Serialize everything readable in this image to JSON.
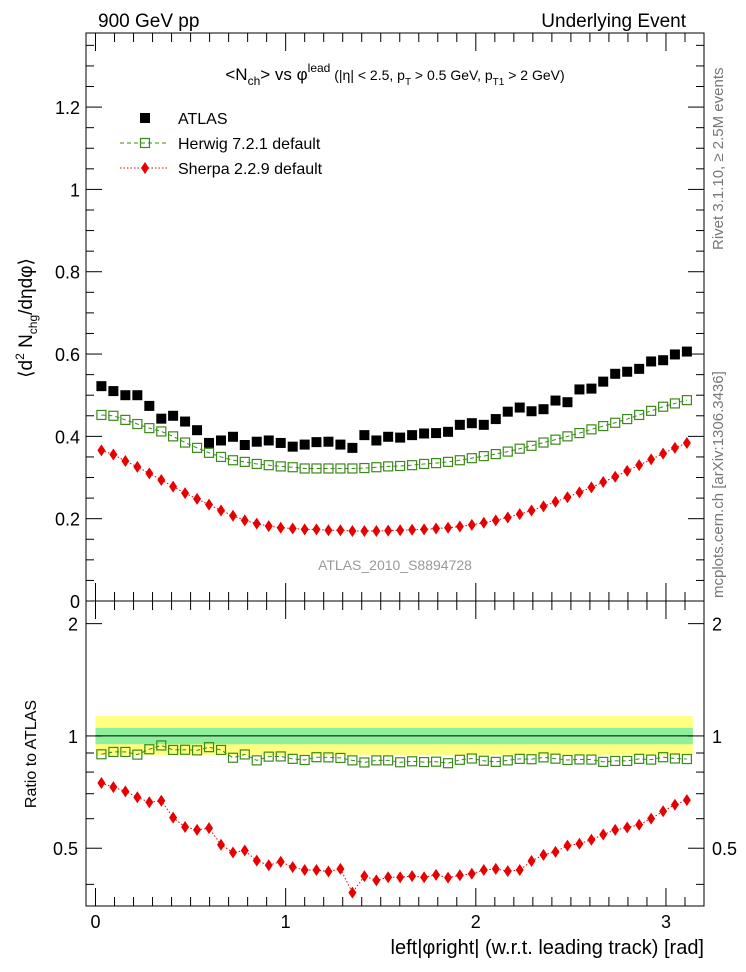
{
  "header": {
    "left": "900 GeV pp",
    "right": "Underlying Event"
  },
  "side_labels": {
    "top": "Rivet 3.1.10, ≥ 2.5M events",
    "bottom": "mcplots.cern.ch [arXiv:1306.3436]"
  },
  "analysis_id": "ATLAS_2010_S8894728",
  "chart_data": [
    {
      "type": "scatter",
      "title": "<N_ch> vs φ^lead (|η| < 2.5, p_T > 0.5 GeV, p_T1 > 2 GeV)",
      "ylabel": "⟨d² N_chg/dηdφ⟩",
      "xlim": [
        -0.05,
        3.2
      ],
      "ylim": [
        0,
        1.38
      ],
      "yticks": [
        0,
        0.2,
        0.4,
        0.6,
        0.8,
        1,
        1.2
      ],
      "ytick_labels": [
        "0",
        "0.2",
        "0.4",
        "0.6",
        "0.8",
        "1",
        "1.2"
      ],
      "legend_position": "top-left",
      "x": [
        0.031,
        0.094,
        0.157,
        0.22,
        0.283,
        0.346,
        0.408,
        0.471,
        0.534,
        0.597,
        0.66,
        0.723,
        0.785,
        0.848,
        0.911,
        0.974,
        1.037,
        1.1,
        1.162,
        1.225,
        1.288,
        1.351,
        1.414,
        1.477,
        1.539,
        1.602,
        1.665,
        1.728,
        1.791,
        1.854,
        1.916,
        1.979,
        2.042,
        2.105,
        2.168,
        2.231,
        2.293,
        2.356,
        2.419,
        2.482,
        2.545,
        2.608,
        2.67,
        2.733,
        2.796,
        2.859,
        2.922,
        2.985,
        3.047,
        3.11
      ],
      "series": [
        {
          "name": "ATLAS",
          "color": "#000000",
          "marker": "square-filled",
          "values": [
            0.522,
            0.51,
            0.5,
            0.5,
            0.474,
            0.443,
            0.45,
            0.436,
            0.415,
            0.384,
            0.39,
            0.399,
            0.379,
            0.387,
            0.39,
            0.384,
            0.375,
            0.38,
            0.386,
            0.387,
            0.38,
            0.372,
            0.403,
            0.39,
            0.399,
            0.397,
            0.403,
            0.407,
            0.408,
            0.411,
            0.428,
            0.432,
            0.428,
            0.442,
            0.46,
            0.47,
            0.461,
            0.466,
            0.487,
            0.483,
            0.514,
            0.516,
            0.533,
            0.552,
            0.557,
            0.564,
            0.582,
            0.585,
            0.599,
            0.606
          ]
        },
        {
          "name": "Herwig 7.2.1 default",
          "color": "#3a8a1a",
          "marker": "square-open",
          "line": "dashed",
          "values": [
            0.452,
            0.45,
            0.44,
            0.43,
            0.42,
            0.412,
            0.4,
            0.385,
            0.372,
            0.36,
            0.35,
            0.342,
            0.338,
            0.333,
            0.33,
            0.327,
            0.325,
            0.322,
            0.322,
            0.322,
            0.322,
            0.322,
            0.323,
            0.325,
            0.327,
            0.328,
            0.33,
            0.333,
            0.335,
            0.338,
            0.342,
            0.347,
            0.352,
            0.357,
            0.363,
            0.37,
            0.377,
            0.385,
            0.392,
            0.4,
            0.408,
            0.417,
            0.425,
            0.433,
            0.442,
            0.452,
            0.462,
            0.472,
            0.48,
            0.488
          ]
        },
        {
          "name": "Sherpa 2.2.9 default",
          "color": "#e80000",
          "marker": "diamond-filled",
          "line": "dotted",
          "values": [
            0.366,
            0.356,
            0.34,
            0.326,
            0.31,
            0.294,
            0.278,
            0.262,
            0.248,
            0.234,
            0.22,
            0.207,
            0.196,
            0.188,
            0.182,
            0.178,
            0.176,
            0.174,
            0.174,
            0.172,
            0.172,
            0.17,
            0.17,
            0.17,
            0.171,
            0.172,
            0.173,
            0.174,
            0.176,
            0.178,
            0.181,
            0.185,
            0.19,
            0.196,
            0.203,
            0.211,
            0.22,
            0.23,
            0.241,
            0.252,
            0.264,
            0.276,
            0.289,
            0.302,
            0.316,
            0.33,
            0.344,
            0.358,
            0.372,
            0.384
          ]
        }
      ]
    },
    {
      "type": "scatter",
      "ylabel": "Ratio to ATLAS",
      "xlabel": "left|φright| (w.r.t. leading track) [rad]",
      "xlim": [
        -0.05,
        3.2
      ],
      "ylim": [
        0.35,
        2.3
      ],
      "log_y": true,
      "xticks": [
        0,
        1,
        2,
        3
      ],
      "xtick_labels": [
        "0",
        "1",
        "2",
        "3"
      ],
      "yticks": [
        0.5,
        1,
        2
      ],
      "ytick_labels": [
        "0.5",
        "1",
        "2"
      ],
      "bands": {
        "inner": {
          "color": "#8ef09a",
          "low": 0.95,
          "high": 1.05
        },
        "outer": {
          "color": "#ffff80",
          "low": 0.89,
          "high": 1.13
        }
      },
      "series": [
        {
          "name": "Herwig 7.2.1 default",
          "color": "#3a8a1a",
          "values": [
            0.893,
            0.906,
            0.906,
            0.891,
            0.921,
            0.943,
            0.917,
            0.918,
            0.915,
            0.933,
            0.917,
            0.874,
            0.892,
            0.86,
            0.88,
            0.881,
            0.868,
            0.862,
            0.877,
            0.876,
            0.873,
            0.86,
            0.849,
            0.86,
            0.86,
            0.85,
            0.855,
            0.851,
            0.853,
            0.845,
            0.863,
            0.87,
            0.858,
            0.852,
            0.86,
            0.868,
            0.866,
            0.876,
            0.869,
            0.862,
            0.865,
            0.864,
            0.852,
            0.857,
            0.857,
            0.868,
            0.864,
            0.877,
            0.87,
            0.867
          ]
        },
        {
          "name": "Sherpa 2.2.9 default",
          "color": "#e80000",
          "values": [
            0.748,
            0.729,
            0.71,
            0.685,
            0.664,
            0.67,
            0.604,
            0.57,
            0.56,
            0.566,
            0.511,
            0.487,
            0.493,
            0.463,
            0.45,
            0.46,
            0.445,
            0.437,
            0.437,
            0.433,
            0.44,
            0.38,
            0.421,
            0.41,
            0.418,
            0.418,
            0.421,
            0.418,
            0.424,
            0.417,
            0.423,
            0.427,
            0.437,
            0.44,
            0.434,
            0.437,
            0.462,
            0.48,
            0.489,
            0.508,
            0.514,
            0.527,
            0.544,
            0.56,
            0.568,
            0.578,
            0.6,
            0.628,
            0.654,
            0.673
          ]
        }
      ]
    }
  ]
}
